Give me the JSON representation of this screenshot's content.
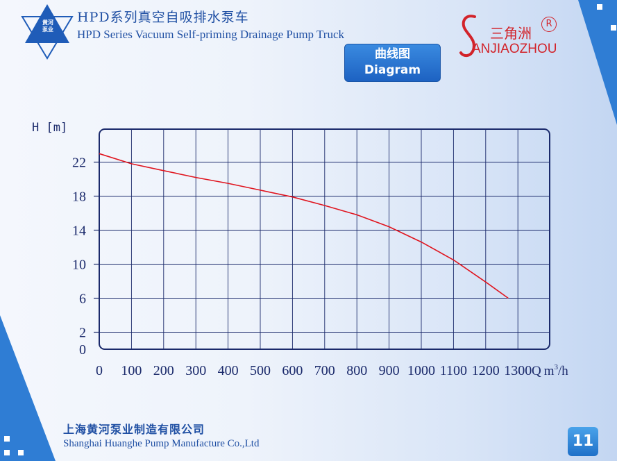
{
  "header": {
    "logo_text_line1": "黄河",
    "logo_text_line2": "泵业",
    "title_cn": "HPD系列真空自吸排水泵车",
    "title_en": "HPD Series Vacuum Self-priming Drainage Pump Truck",
    "section_cn": "曲线图",
    "section_en": "Diagram"
  },
  "brand": {
    "name_cn": "三角洲",
    "registered_mark": "R",
    "name_en": "ANJIAOZHOU"
  },
  "footer": {
    "company_cn": "上海黄河泵业制造有限公司",
    "company_en": "Shanghai Huanghe Pump Manufacture Co.,Ltd",
    "page_number": "11"
  },
  "colors": {
    "accent_blue": "#2f7dd4",
    "text_blue": "#1f4fa3",
    "brand_red": "#d2232a",
    "curve_red": "#e0141e",
    "grid_navy": "#1b2a6b"
  },
  "chart_data": {
    "type": "line",
    "ylabel": "H [m]",
    "xlabel": "Q m³/h",
    "xlabel_q": "Q",
    "xlabel_unit": "m",
    "xlabel_sup": "3",
    "xlabel_suffix": "/h",
    "xlim": [
      0,
      1400
    ],
    "ylim": [
      0,
      24
    ],
    "x_ticks": [
      0,
      100,
      200,
      300,
      400,
      500,
      600,
      700,
      800,
      900,
      1000,
      1100,
      1200,
      1300
    ],
    "y_ticks": [
      0,
      2,
      6,
      10,
      14,
      18,
      22
    ],
    "grid": true,
    "series": [
      {
        "x": [
          0,
          100,
          200,
          300,
          400,
          500,
          600,
          700,
          800,
          900,
          1000,
          1100,
          1200,
          1270
        ],
        "y": [
          23.0,
          21.8,
          21.0,
          20.2,
          19.5,
          18.7,
          17.9,
          16.9,
          15.8,
          14.4,
          12.6,
          10.5,
          7.9,
          6.0
        ]
      }
    ]
  }
}
